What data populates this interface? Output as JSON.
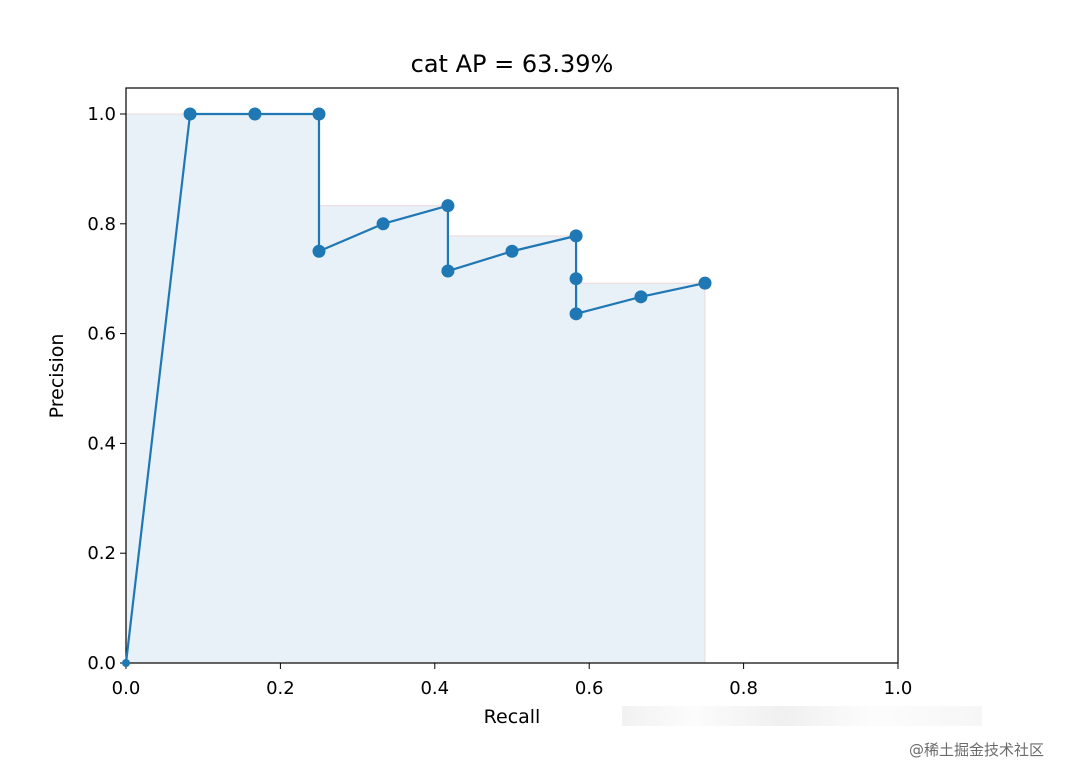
{
  "chart_data": {
    "type": "line",
    "title": "cat AP = 63.39%",
    "xlabel": "Recall",
    "ylabel": "Precision",
    "xlim": [
      0.0,
      1.0
    ],
    "ylim": [
      0.0,
      1.05
    ],
    "xticks": [
      0.0,
      0.2,
      0.4,
      0.6,
      0.8,
      1.0
    ],
    "yticks": [
      0.0,
      0.2,
      0.4,
      0.6,
      0.8,
      1.0
    ],
    "xtick_labels": [
      "0.0",
      "0.2",
      "0.4",
      "0.6",
      "0.8",
      "1.0"
    ],
    "ytick_labels": [
      "0.0",
      "0.2",
      "0.4",
      "0.6",
      "0.8",
      "1.0"
    ],
    "grid": false,
    "series": [
      {
        "name": "precision-recall",
        "color": "#1f77b4",
        "marker": "o",
        "x": [
          0.0,
          0.083,
          0.167,
          0.25,
          0.25,
          0.333,
          0.417,
          0.417,
          0.5,
          0.583,
          0.583,
          0.583,
          0.667,
          0.75
        ],
        "y": [
          0.0,
          1.0,
          1.0,
          1.0,
          0.75,
          0.8,
          0.833,
          0.714,
          0.75,
          0.778,
          0.7,
          0.636,
          0.667,
          0.692
        ]
      }
    ],
    "area": {
      "name": "interpolated-precision-area",
      "fill_color": "#1f77b4",
      "fill_alpha": 0.1,
      "edge_color": "#e8a0a0",
      "x": [
        0.0,
        0.25,
        0.25,
        0.417,
        0.417,
        0.583,
        0.583,
        0.75,
        0.75
      ],
      "y": [
        1.0,
        1.0,
        0.833,
        0.833,
        0.778,
        0.778,
        0.692,
        0.692,
        0.0
      ]
    }
  },
  "watermark": "@稀土掘金技术社区"
}
